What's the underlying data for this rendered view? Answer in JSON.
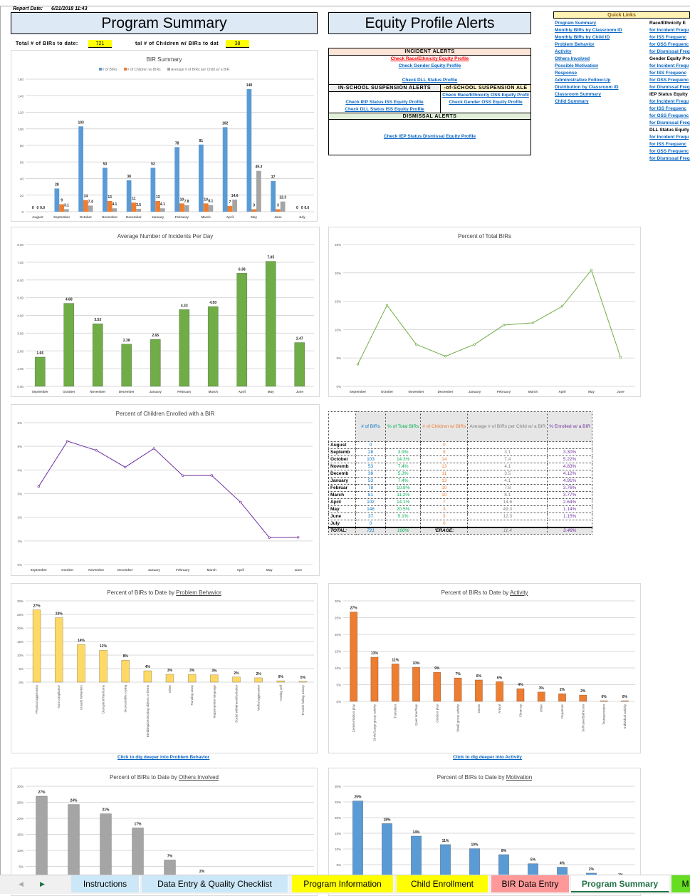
{
  "report_date_label": "Report Date:",
  "report_date": "6/21/2018 11:43",
  "title": "Program Summary",
  "equity_title": "Equity Profile Alerts",
  "totals": {
    "birs_label": "Total # of BIRs to date:",
    "birs_value": "721",
    "children_label": "tal # of Children w/ BIRs to dat",
    "children_value": "38"
  },
  "alerts": {
    "incident_header": "INCIDENT ALERTS",
    "incident_links": [
      "Check Race/Ethnicity Equity Profile",
      "Check Gender Equity Profile",
      "Check DLL Status Profile"
    ],
    "iss_header": "IN-SCHOOL SUSPENSION ALERTS",
    "iss_links": [
      "Check IEP Status ISS Equity Profile",
      "Check DLL Status ISS Equity Profile"
    ],
    "oss_header": "-of-SCHOOL SUSPENSION ALE",
    "oss_links": [
      "Check Race/Ethnicity OSS Equity Profil",
      "Check Gender OSS Equity Profile"
    ],
    "dismissal_header": "DISMISSAL ALERTS",
    "dismissal_links": [
      "Check IEP Status Dismissal Equity Profile"
    ]
  },
  "quick_links": {
    "header": "Quick Links",
    "left": [
      "Program Summary",
      "Monthly BIRs by Classroom ID",
      "Monthly BIRs by Child ID",
      "Problem Behavior",
      "Activity",
      "Others Involved",
      "Possible Motivation",
      "Response",
      "Administrative Follow-Up",
      "Distribution by Classroom ID",
      "Classroom Summary",
      "Child Summary"
    ],
    "right": [
      {
        "text": "Race/Ethnicity E",
        "link": false
      },
      {
        "text": "for Incident Frequ",
        "link": true
      },
      {
        "text": "for ISS Frequenc",
        "link": true
      },
      {
        "text": "for OSS Frequenc",
        "link": true
      },
      {
        "text": "for Dismissal Freq",
        "link": true
      },
      {
        "text": "Gender Equity Pro",
        "link": false
      },
      {
        "text": "for Incident Frequ",
        "link": true
      },
      {
        "text": "for ISS Frequenc",
        "link": true
      },
      {
        "text": "for OSS Frequenc",
        "link": true
      },
      {
        "text": "for Dismissal Freq",
        "link": true
      },
      {
        "text": "IEP Status Equity",
        "link": false
      },
      {
        "text": "for Incident Frequ",
        "link": true
      },
      {
        "text": "for ISS Frequenc",
        "link": true
      },
      {
        "text": "for OSS Frequenc",
        "link": true
      },
      {
        "text": "for Dismissal Freq",
        "link": true
      },
      {
        "text": "DLL Status Equity",
        "link": false
      },
      {
        "text": "for Incident Frequ",
        "link": true
      },
      {
        "text": "for ISS Frequenc",
        "link": true
      },
      {
        "text": "for OSS Frequenc",
        "link": true
      },
      {
        "text": "for Dismissal Freq",
        "link": true
      }
    ]
  },
  "summary_table": {
    "headers": [
      "# of BIRs",
      "% of Total BIRs",
      "# of Children w/ BIRs",
      "Average # of BIRs per Child w/ a BIR",
      "% Enrolled w/ a BIR"
    ],
    "header_colors": [
      "#0070c0",
      "#00b050",
      "#ed7d31",
      "#808080",
      "#7030a0"
    ],
    "rows": [
      [
        "August",
        "0",
        "",
        "0",
        "",
        ""
      ],
      [
        "Septemb",
        "28",
        "3.9%",
        "9",
        "3.1",
        "3.30%"
      ],
      [
        "October",
        "103",
        "14.3%",
        "14",
        "7.4",
        "5.22%"
      ],
      [
        "Novemb",
        "53",
        "7.4%",
        "13",
        "4.1",
        "4.83%"
      ],
      [
        "Decemb",
        "38",
        "5.3%",
        "11",
        "3.5",
        "4.12%"
      ],
      [
        "January",
        "53",
        "7.4%",
        "13",
        "4.1",
        "4.91%"
      ],
      [
        "Februar",
        "78",
        "10.8%",
        "10",
        "7.8",
        "3.76%"
      ],
      [
        "March",
        "81",
        "11.2%",
        "10",
        "8.1",
        "3.77%"
      ],
      [
        "April",
        "102",
        "14.1%",
        "7",
        "14.6",
        "2.64%"
      ],
      [
        "May",
        "148",
        "20.5%",
        "3",
        "49.3",
        "1.14%"
      ],
      [
        "June",
        "37",
        "5.1%",
        "3",
        "12.3",
        "1.15%"
      ],
      [
        "July",
        "0",
        "",
        "0",
        "",
        ""
      ]
    ],
    "total_row": [
      "TOTAL:",
      "721",
      "100%",
      "'ERAGE:",
      "11.4",
      "3.46%"
    ]
  },
  "links": {
    "problem_behavior": "Click to dig deeper into Problem Behavior",
    "activity": "Click to dig deeper into Activity"
  },
  "chart_data": [
    {
      "id": "bir_summary",
      "type": "bar",
      "title": "BIR Summary",
      "categories": [
        "August",
        "September",
        "October",
        "November",
        "December",
        "January",
        "February",
        "March",
        "April",
        "May",
        "June",
        "July"
      ],
      "series": [
        {
          "name": "# of BIRs",
          "color": "#5b9bd5",
          "values": [
            0,
            28,
            103,
            53,
            38,
            53,
            78,
            81,
            102,
            148,
            37,
            0
          ],
          "labels": [
            "0",
            "28",
            "103",
            "53",
            "38",
            "53",
            "78",
            "81",
            "102",
            "148",
            "37",
            "0"
          ]
        },
        {
          "name": "# of Children w/ BIRs",
          "color": "#ed7d31",
          "values": [
            0,
            9,
            14,
            13,
            11,
            13,
            10,
            10,
            7,
            3,
            3,
            0
          ],
          "labels": [
            "0",
            "9",
            "14",
            "13",
            "11",
            "13",
            "10",
            "10",
            "7",
            "3",
            "3",
            "0"
          ]
        },
        {
          "name": "Average # of BIRs per Child w/ a BIR",
          "color": "#a5a5a5",
          "values": [
            0,
            3.1,
            7.4,
            4.1,
            3.5,
            4.1,
            7.8,
            8.1,
            14.6,
            49.3,
            12.3,
            0
          ],
          "labels": [
            "0.0",
            "3.1",
            "7.4",
            "4.1",
            "3.5",
            "4.1",
            "7.8",
            "8.1",
            "14.6",
            "49.3",
            "12.3",
            "0.0"
          ]
        }
      ],
      "ylim": [
        0,
        160
      ],
      "yticks": [
        "0",
        "20",
        "40",
        "60",
        "80",
        "100",
        "120",
        "140",
        "160"
      ],
      "grid": true,
      "legend": "top"
    },
    {
      "id": "avg_incidents",
      "type": "bar",
      "title": "Average Number of Incidents Per Day",
      "categories": [
        "September",
        "October",
        "November",
        "December",
        "January",
        "February",
        "March",
        "April",
        "May",
        "June"
      ],
      "series": [
        {
          "color": "#70ad47",
          "values": [
            1.65,
            4.68,
            3.53,
            2.38,
            2.65,
            4.33,
            4.5,
            6.38,
            7.05,
            2.47
          ],
          "labels": [
            "1.65",
            "4.68",
            "3.53",
            "2.38",
            "2.65",
            "4.33",
            "4.50",
            "6.38",
            "7.05",
            "2.47"
          ]
        }
      ],
      "ylim": [
        0,
        8
      ],
      "yticks": [
        "0.00",
        "1.00",
        "2.00",
        "3.00",
        "4.00",
        "5.00",
        "6.00",
        "7.00",
        "8.00"
      ],
      "grid": true
    },
    {
      "id": "pct_total",
      "type": "line",
      "title": "Percent of Total BIRs",
      "categories": [
        "September",
        "October",
        "November",
        "December",
        "January",
        "February",
        "March",
        "April",
        "May",
        "June"
      ],
      "series": [
        {
          "color": "#70ad47",
          "values": [
            3.9,
            14.3,
            7.4,
            5.3,
            7.4,
            10.8,
            11.2,
            14.1,
            20.5,
            5.1
          ]
        }
      ],
      "ylim": [
        0,
        25
      ],
      "yticks": [
        "0%",
        "5%",
        "10%",
        "15%",
        "20%",
        "25%"
      ],
      "grid": true
    },
    {
      "id": "pct_enrolled",
      "type": "line",
      "title": "Percent of Children Enrolled with a BIR",
      "categories": [
        "September",
        "October",
        "November",
        "December",
        "January",
        "February",
        "March",
        "April",
        "May",
        "June"
      ],
      "series": [
        {
          "color": "#7030a0",
          "values": [
            3.3,
            5.22,
            4.83,
            4.12,
            4.91,
            3.76,
            3.77,
            2.64,
            1.14,
            1.15
          ]
        }
      ],
      "ylim": [
        0,
        6
      ],
      "yticks": [
        "0%",
        "1%",
        "2%",
        "3%",
        "4%",
        "5%",
        "6%"
      ],
      "grid": true
    },
    {
      "id": "problem_behavior",
      "type": "bar",
      "title_prefix": "Percent of BIRs to Date by ",
      "title_key": "Problem Behavior",
      "categories": [
        "Physical aggression",
        "Non-compliance",
        "Unsafe behaviors",
        "Disruption/Tantrums",
        "Inconsolable crying",
        "Breaking/Destroying objects or items",
        "Other",
        "Running away",
        "Inappropriate language",
        "Social withdrawal/Isolation",
        "Verbal aggression",
        "Hurting self",
        "Trouble falling asleep"
      ],
      "series": [
        {
          "color": "#ffd966",
          "values": [
            26.7,
            23.8,
            13.9,
            11.8,
            8.1,
            4.2,
            2.9,
            2.9,
            2.7,
            1.9,
            1.6,
            0.5,
            0.3
          ],
          "labels": [
            "27%",
            "24%",
            "14%",
            "12%",
            "8%",
            "4%",
            "3%",
            "3%",
            "3%",
            "2%",
            "2%",
            "0%",
            "0%"
          ]
        }
      ],
      "ylim": [
        0,
        30
      ],
      "yticks": [
        "0%",
        "5%",
        "10%",
        "15%",
        "20%",
        "25%",
        "30%"
      ],
      "grid": true
    },
    {
      "id": "activity",
      "type": "bar",
      "title_prefix": "Percent of BIRs to Date by ",
      "title_key": "Activity",
      "categories": [
        "Centers/Indoor play",
        "Circle/Large group activity",
        "Transition",
        "Quiet time/Nap",
        "Outdoor play",
        "Small group activity",
        "Meals",
        "Arrival",
        "Clean-up",
        "Other",
        "Departure",
        "Self-care/Bathroom",
        "Transportation",
        "Individual activity"
      ],
      "series": [
        {
          "color": "#ed7d31",
          "values": [
            26.7,
            13.2,
            11.2,
            10.2,
            8.7,
            7.0,
            6.4,
            5.9,
            3.8,
            2.8,
            2.3,
            1.9,
            0.2,
            0.2
          ],
          "labels": [
            "27%",
            "13%",
            "11%",
            "10%",
            "9%",
            "7%",
            "6%",
            "6%",
            "4%",
            "3%",
            "2%",
            "2%",
            "0%",
            "0%"
          ]
        }
      ],
      "ylim": [
        0,
        30
      ],
      "yticks": [
        "0%",
        "5%",
        "10%",
        "15%",
        "20%",
        "25%",
        "30%"
      ],
      "grid": true
    },
    {
      "id": "others_involved",
      "type": "bar",
      "title_prefix": "Percent of BIRs to Date by ",
      "title_key": "Others Involved",
      "series": [
        {
          "color": "#a5a5a5",
          "values": [
            26.9,
            24.3,
            21.4,
            17.0,
            7.0,
            2.2
          ],
          "labels": [
            "27%",
            "24%",
            "21%",
            "17%",
            "7%",
            "2%"
          ]
        }
      ],
      "ylim": [
        0,
        30
      ],
      "yticks": [
        "5%",
        "10%",
        "15%",
        "20%",
        "25%",
        "30%"
      ],
      "grid": true
    },
    {
      "id": "motivation",
      "type": "bar",
      "title_prefix": "Percent of BIRs to Date by ",
      "title_key": "Motivation",
      "series": [
        {
          "color": "#5b9bd5",
          "values": [
            25.3,
            18.1,
            14.1,
            11.4,
            10.1,
            8.2,
            5.3,
            4.2,
            2.3,
            0.5
          ],
          "labels": [
            "25%",
            "18%",
            "14%",
            "11%",
            "10%",
            "8%",
            "5%",
            "4%",
            "2%",
            "1%"
          ]
        }
      ],
      "ylim": [
        0,
        30
      ],
      "yticks": [
        "5%",
        "10%",
        "15%",
        "20%",
        "25%",
        "30%"
      ],
      "grid": true
    }
  ],
  "sheet_tabs": [
    {
      "label": "Instructions",
      "color": "#cce8f8",
      "active": false
    },
    {
      "label": "Data Entry & Quality Checklist",
      "color": "#cce8f8",
      "active": false
    },
    {
      "label": "Program Information",
      "color": "#ffff00",
      "active": false
    },
    {
      "label": "Child Enrollment",
      "color": "#ffff00",
      "active": false
    },
    {
      "label": "BIR Data Entry",
      "color": "#ff9999",
      "active": false
    },
    {
      "label": "Program Summary",
      "color": "#ffffff",
      "active": true
    },
    {
      "label": "M",
      "color": "#66dd22",
      "active": false
    }
  ]
}
